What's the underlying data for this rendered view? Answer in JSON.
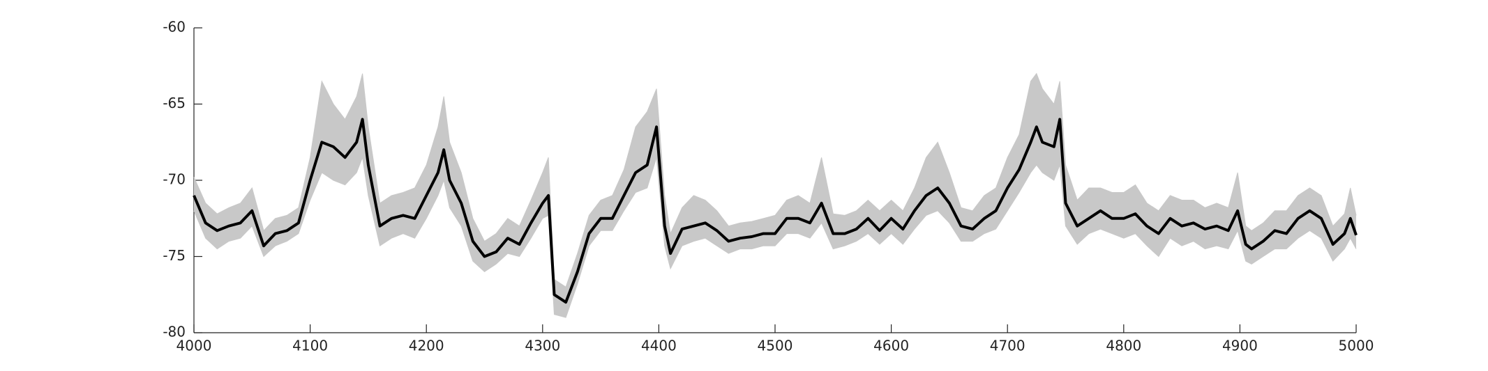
{
  "chart_data": {
    "type": "line",
    "x": [
      4000,
      4010,
      4020,
      4030,
      4040,
      4050,
      4060,
      4070,
      4080,
      4090,
      4100,
      4110,
      4120,
      4130,
      4140,
      4145,
      4150,
      4160,
      4170,
      4180,
      4190,
      4200,
      4210,
      4215,
      4220,
      4230,
      4240,
      4250,
      4260,
      4270,
      4280,
      4290,
      4300,
      4305,
      4310,
      4320,
      4330,
      4340,
      4350,
      4360,
      4370,
      4380,
      4390,
      4398,
      4405,
      4410,
      4420,
      4430,
      4440,
      4450,
      4460,
      4470,
      4480,
      4490,
      4500,
      4510,
      4520,
      4530,
      4540,
      4550,
      4560,
      4570,
      4580,
      4590,
      4600,
      4610,
      4620,
      4630,
      4640,
      4650,
      4660,
      4670,
      4680,
      4690,
      4700,
      4710,
      4720,
      4725,
      4730,
      4740,
      4745,
      4750,
      4760,
      4770,
      4780,
      4790,
      4800,
      4810,
      4820,
      4830,
      4840,
      4850,
      4860,
      4870,
      4880,
      4890,
      4898,
      4905,
      4910,
      4920,
      4930,
      4940,
      4950,
      4960,
      4970,
      4980,
      4990,
      4995,
      5000
    ],
    "band": {
      "color": "#c8c8c8",
      "upper": [
        -69.8,
        -71.5,
        -72.2,
        -71.8,
        -71.5,
        -70.5,
        -73.3,
        -72.5,
        -72.3,
        -71.8,
        -68.5,
        -63.5,
        -65,
        -66,
        -64.5,
        -63,
        -66.5,
        -71.5,
        -71,
        -70.8,
        -70.5,
        -69,
        -66.5,
        -64.5,
        -67.5,
        -69.5,
        -72.5,
        -74,
        -73.5,
        -72.5,
        -73,
        -71.3,
        -69.5,
        -68.5,
        -76.5,
        -77,
        -74.8,
        -72.3,
        -71.3,
        -71,
        -69.3,
        -66.5,
        -65.5,
        -64,
        -71,
        -73.5,
        -71.8,
        -71,
        -71.3,
        -72,
        -73,
        -72.8,
        -72.7,
        -72.5,
        -72.3,
        -71.3,
        -71,
        -71.5,
        -68.5,
        -72.2,
        -72.3,
        -72,
        -71.3,
        -72,
        -71.3,
        -72,
        -70.5,
        -68.5,
        -67.5,
        -69.5,
        -71.8,
        -72,
        -71,
        -70.5,
        -68.5,
        -67,
        -63.5,
        -63,
        -64,
        -65,
        -63.5,
        -69,
        -71.3,
        -70.5,
        -70.5,
        -70.8,
        -70.8,
        -70.3,
        -71.5,
        -72,
        -71,
        -71.3,
        -71.3,
        -71.8,
        -71.5,
        -71.8,
        -69.5,
        -73,
        -73.3,
        -72.8,
        -72,
        -72,
        -71,
        -70.5,
        -71,
        -73,
        -72.2,
        -70.5,
        -72.3
      ],
      "lower": [
        -72,
        -73.8,
        -74.5,
        -74,
        -73.8,
        -73,
        -75,
        -74.3,
        -74,
        -73.5,
        -71.3,
        -69.5,
        -70,
        -70.3,
        -69.5,
        -68.5,
        -71,
        -74.3,
        -73.8,
        -73.5,
        -73.8,
        -72.5,
        -71,
        -70,
        -71.8,
        -73,
        -75.3,
        -76,
        -75.5,
        -74.8,
        -75,
        -73.8,
        -72.5,
        -72.3,
        -78.8,
        -79,
        -76.8,
        -74.3,
        -73.3,
        -73.3,
        -72,
        -70.8,
        -70.5,
        -68.5,
        -74.3,
        -75.8,
        -74.3,
        -74,
        -73.8,
        -74.3,
        -74.8,
        -74.5,
        -74.5,
        -74.3,
        -74.3,
        -73.5,
        -73.5,
        -73.8,
        -72.8,
        -74.5,
        -74.3,
        -74,
        -73.5,
        -74.2,
        -73.5,
        -74.2,
        -73.2,
        -72.3,
        -72,
        -72.8,
        -74,
        -74,
        -73.5,
        -73.2,
        -72,
        -70.8,
        -69.5,
        -69,
        -69.5,
        -70,
        -69,
        -73,
        -74.2,
        -73.5,
        -73.2,
        -73.5,
        -73.8,
        -73.5,
        -74.3,
        -75,
        -73.8,
        -74.3,
        -74,
        -74.5,
        -74.3,
        -74.5,
        -73.3,
        -75.3,
        -75.5,
        -75,
        -74.5,
        -74.5,
        -73.8,
        -73.3,
        -73.8,
        -75.3,
        -74.5,
        -73.8,
        -74.5
      ]
    },
    "series": [
      {
        "color": "#000000",
        "values": [
          -71,
          -72.8,
          -73.3,
          -73,
          -72.8,
          -72,
          -74.3,
          -73.5,
          -73.3,
          -72.8,
          -70,
          -67.5,
          -67.8,
          -68.5,
          -67.5,
          -66,
          -69,
          -73,
          -72.5,
          -72.3,
          -72.5,
          -71,
          -69.5,
          -68,
          -70,
          -71.5,
          -74,
          -75,
          -74.7,
          -73.8,
          -74.2,
          -72.8,
          -71.5,
          -71,
          -77.5,
          -78,
          -76,
          -73.5,
          -72.5,
          -72.5,
          -71,
          -69.5,
          -69,
          -66.5,
          -73,
          -74.8,
          -73.2,
          -73,
          -72.8,
          -73.3,
          -74,
          -73.8,
          -73.7,
          -73.5,
          -73.5,
          -72.5,
          -72.5,
          -72.8,
          -71.5,
          -73.5,
          -73.5,
          -73.2,
          -72.5,
          -73.3,
          -72.5,
          -73.2,
          -72,
          -71,
          -70.5,
          -71.5,
          -73,
          -73.2,
          -72.5,
          -72,
          -70.5,
          -69.3,
          -67.5,
          -66.5,
          -67.5,
          -67.8,
          -66,
          -71.5,
          -73,
          -72.5,
          -72,
          -72.5,
          -72.5,
          -72.2,
          -73,
          -73.5,
          -72.5,
          -73,
          -72.8,
          -73.2,
          -73,
          -73.3,
          -72,
          -74.2,
          -74.5,
          -74,
          -73.3,
          -73.5,
          -72.5,
          -72,
          -72.5,
          -74.2,
          -73.5,
          -72.5,
          -73.6
        ]
      }
    ],
    "xlim": [
      4000,
      5000
    ],
    "xticks": [
      4000,
      4100,
      4200,
      4300,
      4400,
      4500,
      4600,
      4700,
      4800,
      4900,
      5000
    ],
    "ylim": [
      -80,
      -60
    ],
    "yticks": [
      -80,
      -75,
      -70,
      -65,
      -60
    ],
    "grid": false
  }
}
